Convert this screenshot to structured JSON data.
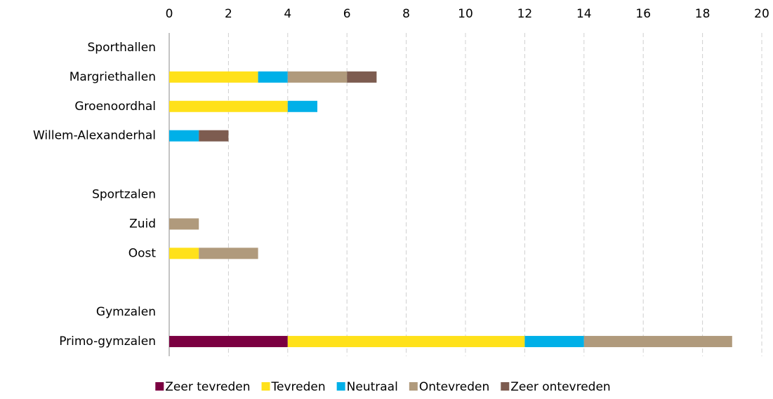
{
  "chart_data": {
    "type": "stacked-barh",
    "categories": [
      "Sporthallen",
      "Margriethallen",
      "Groenoordhal",
      "Willem-Alexanderhal",
      null,
      "Sportzalen",
      "Zuid",
      "Oost",
      null,
      "Gymzalen",
      "Primo-gymzalen"
    ],
    "series": [
      {
        "name": "Zeer tevreden",
        "color": "#7b0041",
        "values": [
          null,
          0,
          0,
          0,
          null,
          null,
          0,
          0,
          null,
          null,
          4
        ]
      },
      {
        "name": "Tevreden",
        "color": "#ffe11a",
        "values": [
          null,
          3,
          4,
          0,
          null,
          null,
          0,
          1,
          null,
          null,
          8
        ]
      },
      {
        "name": "Neutraal",
        "color": "#00b0e8",
        "values": [
          null,
          1,
          1,
          1,
          null,
          null,
          0,
          0,
          null,
          null,
          2
        ]
      },
      {
        "name": "Ontevreden",
        "color": "#b09a7c",
        "values": [
          null,
          2,
          0,
          0,
          null,
          null,
          1,
          2,
          null,
          null,
          5
        ]
      },
      {
        "name": "Zeer ontevreden",
        "color": "#7d5c50",
        "values": [
          null,
          1,
          0,
          1,
          null,
          null,
          0,
          0,
          null,
          null,
          0
        ]
      }
    ],
    "xlim": [
      0,
      20
    ],
    "xticks": [
      0,
      2,
      4,
      6,
      8,
      10,
      12,
      14,
      16,
      18,
      20
    ],
    "grid": true,
    "legend": "bottom"
  }
}
